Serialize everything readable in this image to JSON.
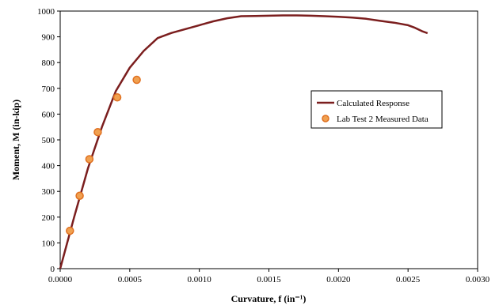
{
  "chart_data": {
    "type": "line",
    "xlabel": "Curvature, f (in⁻¹)",
    "ylabel": "Moment, M (in-kip)",
    "xlim": [
      0,
      0.003
    ],
    "ylim": [
      0,
      1000
    ],
    "x_ticks": [
      "0.0000",
      "0.0005",
      "0.0010",
      "0.0015",
      "0.0020",
      "0.0025",
      "0.0030"
    ],
    "y_ticks": [
      "0",
      "100",
      "200",
      "300",
      "400",
      "500",
      "600",
      "700",
      "800",
      "900",
      "1000"
    ],
    "grid": false,
    "legend_position": "right",
    "series": [
      {
        "name": "Calculated Response",
        "kind": "line",
        "color": "#7b1e1e",
        "x": [
          0,
          0.0001,
          0.0002,
          0.0003,
          0.0004,
          0.0005,
          0.0006,
          0.0007,
          0.0008,
          0.0009,
          0.001,
          0.0011,
          0.0012,
          0.0013,
          0.0014,
          0.0015,
          0.0016,
          0.0017,
          0.0018,
          0.0019,
          0.002,
          0.0021,
          0.0022,
          0.0023,
          0.0024,
          0.0025,
          0.00255,
          0.0026,
          0.00264
        ],
        "y": [
          0,
          200,
          390,
          550,
          690,
          780,
          845,
          895,
          915,
          930,
          945,
          960,
          972,
          980,
          981,
          982,
          983,
          983,
          982,
          980,
          978,
          975,
          970,
          962,
          955,
          945,
          935,
          922,
          914
        ]
      },
      {
        "name": "Lab Test 2 Measured Data",
        "kind": "scatter",
        "color": "#f0a050",
        "edge_color": "#e07020",
        "x": [
          7e-05,
          0.00014,
          0.00021,
          0.00027,
          0.00041,
          0.00055
        ],
        "y": [
          147,
          283,
          425,
          530,
          665,
          733
        ]
      }
    ]
  }
}
